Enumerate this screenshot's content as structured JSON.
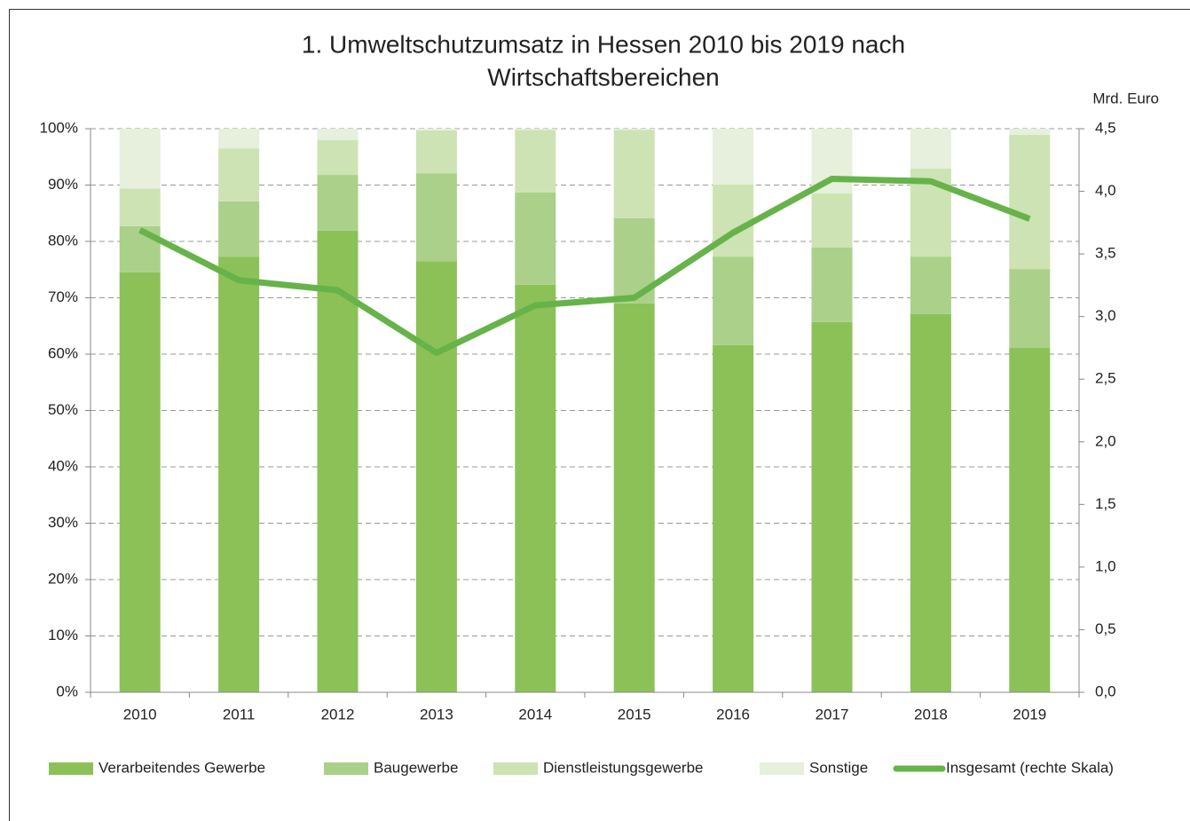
{
  "chart_data": {
    "type": "bar",
    "stacked": true,
    "title": [
      "1. Umweltschutzumsatz in Hessen 2010 bis 2019 nach",
      "Wirtschaftsbereichen"
    ],
    "y2_label": "Mrd. Euro",
    "categories": [
      "2010",
      "2011",
      "2012",
      "2013",
      "2014",
      "2015",
      "2016",
      "2017",
      "2018",
      "2019"
    ],
    "series": [
      {
        "name": "Verarbeitendes Gewerbe",
        "color": "#8cc157",
        "values": [
          74.5,
          77.3,
          81.9,
          76.5,
          72.3,
          69.0,
          61.6,
          65.7,
          67.1,
          61.1
        ]
      },
      {
        "name": "Baugewerbe",
        "color": "#abd08a",
        "values": [
          8.2,
          9.8,
          9.9,
          15.6,
          16.4,
          15.1,
          15.7,
          13.2,
          10.2,
          14.0
        ]
      },
      {
        "name": "Dienstleistungsgewerbe",
        "color": "#cde3b4",
        "values": [
          6.7,
          9.4,
          6.2,
          7.6,
          11.1,
          15.7,
          12.8,
          9.6,
          15.6,
          23.8
        ]
      },
      {
        "name": "Sonstige",
        "color": "#e6f0dc",
        "values": [
          10.6,
          3.5,
          2.0,
          0.3,
          0.2,
          0.2,
          9.9,
          11.5,
          7.1,
          1.1
        ]
      },
      {
        "name": "Insgesamt (rechte Skala)",
        "color": "#66b34a",
        "type": "line",
        "axis": "y2",
        "values": [
          3.69,
          3.29,
          3.21,
          2.71,
          3.09,
          3.15,
          3.67,
          4.1,
          4.08,
          3.78
        ]
      }
    ],
    "ylim": [
      0,
      100
    ],
    "yticks": [
      {
        "value": 0,
        "label": "0%"
      },
      {
        "value": 10,
        "label": "10%"
      },
      {
        "value": 20,
        "label": "20%"
      },
      {
        "value": 30,
        "label": "30%"
      },
      {
        "value": 40,
        "label": "40%"
      },
      {
        "value": 50,
        "label": "50%"
      },
      {
        "value": 60,
        "label": "60%"
      },
      {
        "value": 70,
        "label": "70%"
      },
      {
        "value": 80,
        "label": "80%"
      },
      {
        "value": 90,
        "label": "90%"
      },
      {
        "value": 100,
        "label": "100%"
      }
    ],
    "y2lim": [
      0,
      4.5
    ],
    "y2ticks": [
      {
        "value": 0,
        "label": "0,0"
      },
      {
        "value": 0.5,
        "label": "0,5"
      },
      {
        "value": 1,
        "label": "1,0"
      },
      {
        "value": 1.5,
        "label": "1,5"
      },
      {
        "value": 2,
        "label": "2,0"
      },
      {
        "value": 2.5,
        "label": "2,5"
      },
      {
        "value": 3,
        "label": "3,0"
      },
      {
        "value": 3.5,
        "label": "3,5"
      },
      {
        "value": 4,
        "label": "4,0"
      },
      {
        "value": 4.5,
        "label": "4,5"
      }
    ],
    "grid": true,
    "legend": "bottom"
  }
}
